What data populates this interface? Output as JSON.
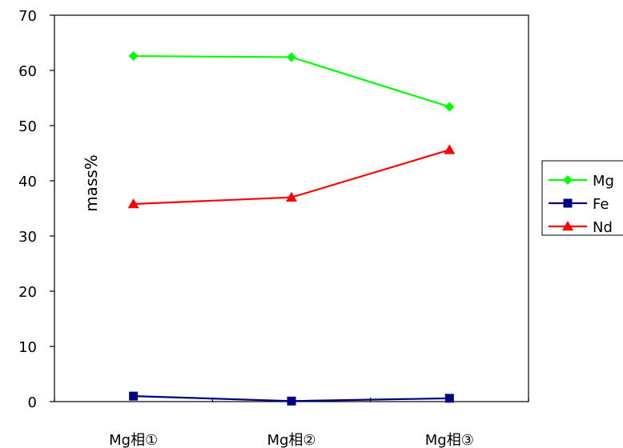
{
  "chart_data": {
    "type": "line",
    "categories": [
      "Mg相①",
      "Mg相②",
      "Mg相③"
    ],
    "series": [
      {
        "name": "Mg",
        "values": [
          62.6,
          62.4,
          53.4
        ],
        "color": "#00ff00",
        "marker": "diamond"
      },
      {
        "name": "Fe",
        "values": [
          1.0,
          0.1,
          0.6
        ],
        "color": "#000080",
        "marker": "square"
      },
      {
        "name": "Nd",
        "values": [
          35.8,
          37.0,
          45.6
        ],
        "color": "#ff0000",
        "marker": "triangle"
      }
    ],
    "ylabel": "mass%",
    "ylim": [
      0,
      70
    ],
    "yticks": [
      0,
      10,
      20,
      30,
      40,
      50,
      60,
      70
    ],
    "legend_position": "right",
    "grid": false
  }
}
